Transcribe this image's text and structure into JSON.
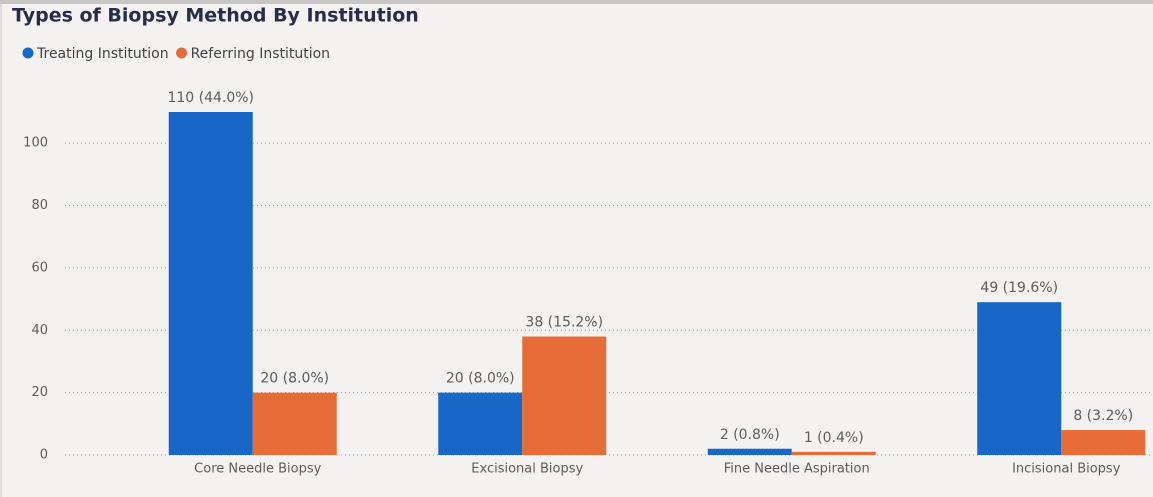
{
  "chart_data": {
    "type": "bar",
    "title": "Types of Biopsy Method By Institution",
    "categories": [
      "Core Needle Biopsy",
      "Excisional Biopsy",
      "Fine Needle Aspiration",
      "Incisional Biopsy"
    ],
    "series": [
      {
        "name": "Treating Institution",
        "color": "#1866c5",
        "values": [
          110,
          20,
          2,
          49
        ],
        "value_labels": [
          "110 (44.0%)",
          "20 (8.0%)",
          "2 (0.8%)",
          "49 (19.6%)"
        ]
      },
      {
        "name": "Referring Institution",
        "color": "#e66c37",
        "values": [
          20,
          38,
          1,
          8
        ],
        "value_labels": [
          "20 (8.0%)",
          "38 (15.2%)",
          "1 (0.4%)",
          "8 (3.2%)"
        ]
      }
    ],
    "ylim": [
      0,
      110
    ],
    "yticks": [
      0,
      20,
      40,
      60,
      80,
      100
    ],
    "grid": true
  }
}
